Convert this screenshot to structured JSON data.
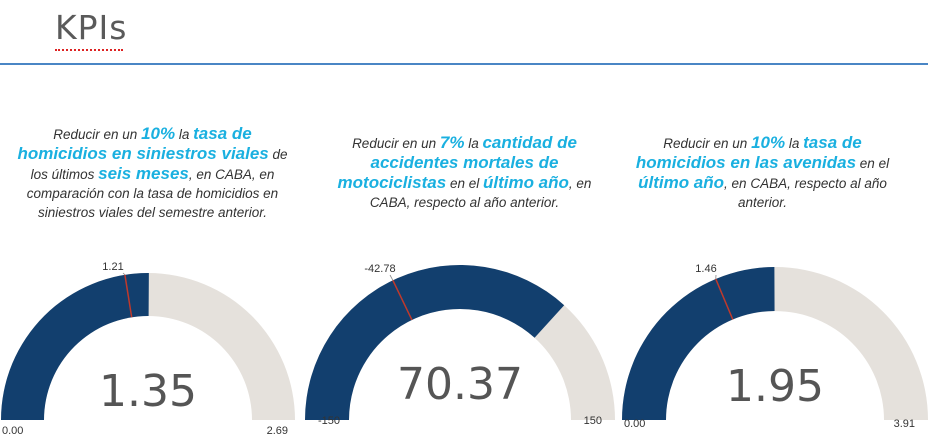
{
  "header": {
    "title": "KPIs"
  },
  "colors": {
    "fill": "#123f6e",
    "track": "#e5e1dc",
    "target": "#c0392b",
    "highlight": "#1ab0e0",
    "rule": "#4a86c5"
  },
  "kpis": [
    {
      "text": [
        {
          "t": "Reducir en un ",
          "h": false
        },
        {
          "t": "10%",
          "h": true
        },
        {
          "t": " la ",
          "h": false
        },
        {
          "t": "tasa de",
          "h": true
        },
        {
          "t": "\n",
          "h": false
        },
        {
          "t": "homicidios en siniestros viales",
          "h": true
        },
        {
          "t": " de",
          "h": false
        },
        {
          "t": "\n",
          "h": false
        },
        {
          "t": "los últimos ",
          "h": false
        },
        {
          "t": "seis meses",
          "h": true
        },
        {
          "t": ", en CABA, en",
          "h": false
        },
        {
          "t": "\n",
          "h": false
        },
        {
          "t": "comparación con la tasa de homicidios en",
          "h": false
        },
        {
          "t": "\n",
          "h": false
        },
        {
          "t": "siniestros viales del semestre anterior.",
          "h": false
        }
      ],
      "value_label": "1.35",
      "min_label": "0.00",
      "max_label": "2.69",
      "target_label": "1.21",
      "value": 1.35,
      "min": 0.0,
      "max": 2.69,
      "target": 1.21
    },
    {
      "text": [
        {
          "t": "Reducir en un ",
          "h": false
        },
        {
          "t": "7%",
          "h": true
        },
        {
          "t": " la ",
          "h": false
        },
        {
          "t": "cantidad de",
          "h": true
        },
        {
          "t": "\n",
          "h": false
        },
        {
          "t": "accidentes mortales de",
          "h": true
        },
        {
          "t": "\n",
          "h": false
        },
        {
          "t": "motociclistas",
          "h": true
        },
        {
          "t": " en el ",
          "h": false
        },
        {
          "t": "último año",
          "h": true
        },
        {
          "t": ", en",
          "h": false
        },
        {
          "t": "\n",
          "h": false
        },
        {
          "t": "CABA, respecto al año anterior.",
          "h": false
        }
      ],
      "value_label": "70.37",
      "min_label": "-150",
      "max_label": "150",
      "target_label": "-42.78",
      "value": 70.37,
      "min": -150,
      "max": 150,
      "target": -42.78
    },
    {
      "text": [
        {
          "t": "Reducir en un ",
          "h": false
        },
        {
          "t": "10%",
          "h": true
        },
        {
          "t": " la  ",
          "h": false
        },
        {
          "t": "tasa de",
          "h": true
        },
        {
          "t": "\n",
          "h": false
        },
        {
          "t": "homicidios  en las avenidas",
          "h": true
        },
        {
          "t": " en el",
          "h": false
        },
        {
          "t": "\n",
          "h": false
        },
        {
          "t": "último año",
          "h": true
        },
        {
          "t": ", en CABA, respecto al año",
          "h": false
        },
        {
          "t": "\n",
          "h": false
        },
        {
          "t": "anterior.",
          "h": false
        }
      ],
      "value_label": "1.95",
      "min_label": "0.00",
      "max_label": "3.91",
      "target_label": "1.46",
      "value": 1.95,
      "min": 0.0,
      "max": 3.91,
      "target": 1.46
    }
  ]
}
